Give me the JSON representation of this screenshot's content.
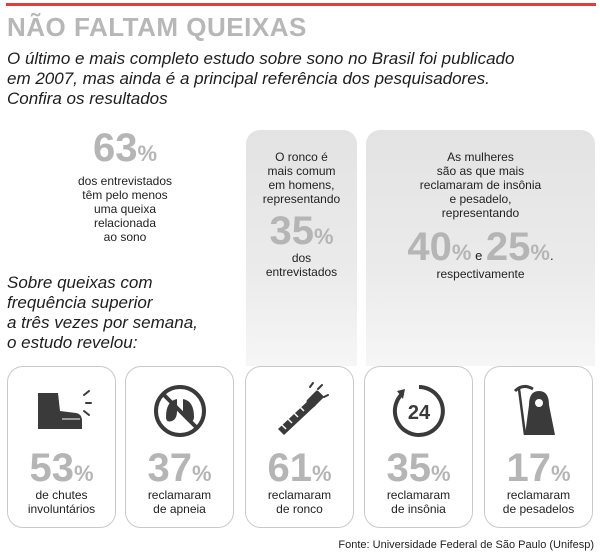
{
  "title": "NÃO FALTAM QUEIXAS",
  "intro": "O último e mais completo estudo sobre sono no Brasil foi publicado em 2007, mas ainda é a principal referência dos pesquisadores. Confira os resultados",
  "stat_main": {
    "value": "63",
    "unit": "%",
    "text": [
      "dos entrevistados",
      "têm pelo menos",
      "uma queixa",
      "relacionada",
      "ao sono"
    ]
  },
  "panel_men": {
    "text": [
      "O ronco é",
      "mais comum",
      "em homens,",
      "representando"
    ],
    "value": "35",
    "unit": "%",
    "after": [
      "dos",
      "entrevistados"
    ]
  },
  "panel_women": {
    "text": [
      "As mulheres",
      "são as que mais",
      "reclamaram de insônia",
      "e pesadelo,",
      "representando"
    ],
    "value1": "40",
    "unit1": "%",
    "conj": "e",
    "value2": "25",
    "unit2": "%",
    "tail": ".",
    "after": "respectivamente"
  },
  "frequency": [
    "Sobre queixas com",
    "frequência superior",
    "a três vezes por semana,",
    "o estudo revelou:"
  ],
  "cards": [
    {
      "icon": "kicking-leg-icon",
      "value": "53",
      "unit": "%",
      "label": [
        "de chutes",
        "involuntários"
      ]
    },
    {
      "icon": "no-breathing-lungs-icon",
      "value": "37",
      "unit": "%",
      "label": [
        "reclamaram",
        "de apneia"
      ]
    },
    {
      "icon": "snoring-saw-icon",
      "value": "61",
      "unit": "%",
      "label": [
        "reclamaram",
        "de ronco"
      ]
    },
    {
      "icon": "24-hours-clock-icon",
      "value": "35",
      "unit": "%",
      "label": [
        "reclamaram",
        "de insônia"
      ],
      "icon_text": "24"
    },
    {
      "icon": "grim-reaper-icon",
      "value": "17",
      "unit": "%",
      "label": [
        "reclamaram",
        "de pesadelos"
      ]
    }
  ],
  "source": "Fonte: Universidade Federal de São Paulo (Unifesp)",
  "colors": {
    "accent": "#e23d3d",
    "number_gray": "#b5b5b5",
    "title_gray": "#b7b7b7",
    "icon_dark": "#3a3a3a"
  }
}
